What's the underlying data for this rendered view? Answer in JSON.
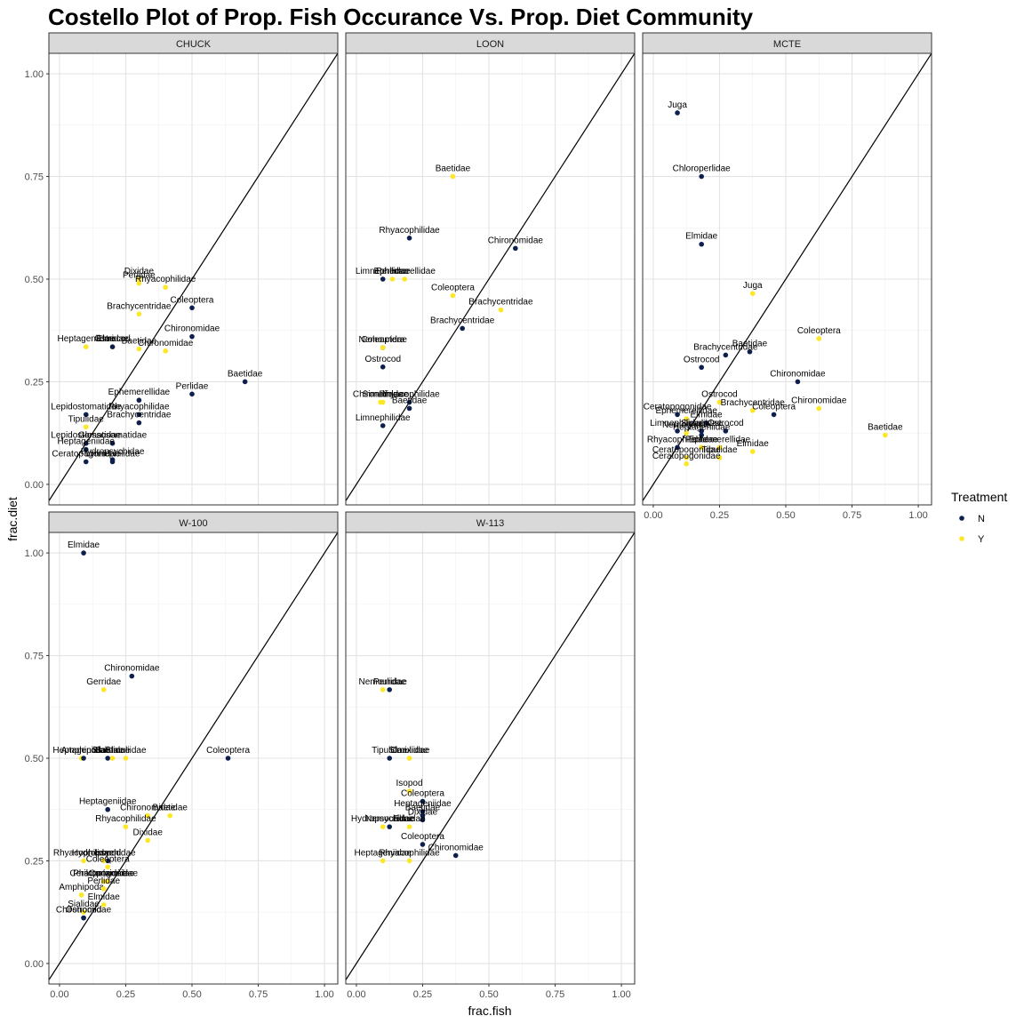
{
  "chart_data": {
    "type": "scatter",
    "title": "Costello Plot of Prop. Fish Occurance Vs. Prop. Diet Community",
    "xlabel": "frac.fish",
    "ylabel": "frac.diet",
    "xlim": [
      -0.04,
      1.05
    ],
    "ylim": [
      -0.05,
      1.05
    ],
    "x_ticks": [
      "0.00",
      "0.25",
      "0.50",
      "0.75",
      "1.00"
    ],
    "y_ticks": [
      "0.00",
      "0.25",
      "0.50",
      "0.75",
      "1.00"
    ],
    "reference_line": "y = x",
    "grid": true,
    "legend": {
      "title": "Treatment",
      "position": "right",
      "entries": [
        {
          "name": "N",
          "color": "#0d1f4d"
        },
        {
          "name": "Y",
          "color": "#fde725"
        }
      ]
    },
    "panels": [
      {
        "name": "CHUCK",
        "points": [
          {
            "label": "Dixidae",
            "x": 0.3,
            "y": 0.5,
            "t": "Y"
          },
          {
            "label": "Perlidae",
            "x": 0.3,
            "y": 0.49,
            "t": "Y"
          },
          {
            "label": "Rhyacophilidae",
            "x": 0.4,
            "y": 0.48,
            "t": "Y"
          },
          {
            "label": "Coleoptera",
            "x": 0.5,
            "y": 0.43,
            "t": "N"
          },
          {
            "label": "Brachycentridae",
            "x": 0.3,
            "y": 0.415,
            "t": "Y"
          },
          {
            "label": "Chironomidae",
            "x": 0.5,
            "y": 0.36,
            "t": "N"
          },
          {
            "label": "Heptageniidae",
            "x": 0.1,
            "y": 0.335,
            "t": "Y"
          },
          {
            "label": "Elmidae",
            "x": 0.2,
            "y": 0.335,
            "t": "Y"
          },
          {
            "label": "Ostrocod",
            "x": 0.2,
            "y": 0.335,
            "t": "N"
          },
          {
            "label": "Baetidae",
            "x": 0.3,
            "y": 0.33,
            "t": "Y"
          },
          {
            "label": "Chironomidae",
            "x": 0.4,
            "y": 0.325,
            "t": "Y"
          },
          {
            "label": "Baetidae",
            "x": 0.7,
            "y": 0.25,
            "t": "N"
          },
          {
            "label": "Perlidae",
            "x": 0.5,
            "y": 0.22,
            "t": "N"
          },
          {
            "label": "Ephemerellidae",
            "x": 0.3,
            "y": 0.205,
            "t": "N"
          },
          {
            "label": "Rhyacophilidae",
            "x": 0.3,
            "y": 0.17,
            "t": "N"
          },
          {
            "label": "Lepidostomatidae",
            "x": 0.1,
            "y": 0.17,
            "t": "N"
          },
          {
            "label": "Brachycentridae",
            "x": 0.3,
            "y": 0.15,
            "t": "N"
          },
          {
            "label": "Tipulidae",
            "x": 0.1,
            "y": 0.14,
            "t": "Y"
          },
          {
            "label": "Lepidostomatidae",
            "x": 0.1,
            "y": 0.1,
            "t": "N"
          },
          {
            "label": "Glossosomatidae",
            "x": 0.2,
            "y": 0.1,
            "t": "N"
          },
          {
            "label": "Heptageniidae",
            "x": 0.1,
            "y": 0.085,
            "t": "N"
          },
          {
            "label": "Ceratopogonidae",
            "x": 0.1,
            "y": 0.055,
            "t": "N"
          },
          {
            "label": "Limnephilidae",
            "x": 0.2,
            "y": 0.055,
            "t": "N"
          },
          {
            "label": "Hydropsychidae",
            "x": 0.2,
            "y": 0.06,
            "t": "N"
          }
        ]
      },
      {
        "name": "LOON",
        "points": [
          {
            "label": "Baetidae",
            "x": 0.364,
            "y": 0.75,
            "t": "Y"
          },
          {
            "label": "Rhyacophilidae",
            "x": 0.2,
            "y": 0.6,
            "t": "N"
          },
          {
            "label": "Chironomidae",
            "x": 0.6,
            "y": 0.575,
            "t": "N"
          },
          {
            "label": "Limnephilidae",
            "x": 0.1,
            "y": 0.5,
            "t": "N"
          },
          {
            "label": "Perlidae",
            "x": 0.136,
            "y": 0.5,
            "t": "Y"
          },
          {
            "label": "Ephemerellidae",
            "x": 0.182,
            "y": 0.5,
            "t": "Y"
          },
          {
            "label": "Coleoptera",
            "x": 0.364,
            "y": 0.46,
            "t": "Y"
          },
          {
            "label": "Brachycentridae",
            "x": 0.545,
            "y": 0.425,
            "t": "Y"
          },
          {
            "label": "Brachycentridae",
            "x": 0.4,
            "y": 0.38,
            "t": "N"
          },
          {
            "label": "Nemouridae",
            "x": 0.1,
            "y": 0.333,
            "t": "N"
          },
          {
            "label": "Coleoptera",
            "x": 0.1,
            "y": 0.333,
            "t": "Y"
          },
          {
            "label": "Ostrocod",
            "x": 0.1,
            "y": 0.286,
            "t": "N"
          },
          {
            "label": "Chironomidae",
            "x": 0.091,
            "y": 0.2,
            "t": "Y"
          },
          {
            "label": "Simuliidae",
            "x": 0.1,
            "y": 0.2,
            "t": "Y"
          },
          {
            "label": "Rhyacophilidae",
            "x": 0.2,
            "y": 0.2,
            "t": "N"
          },
          {
            "label": "Baetidae",
            "x": 0.2,
            "y": 0.185,
            "t": "N"
          },
          {
            "label": "Limnephilidae",
            "x": 0.1,
            "y": 0.143,
            "t": "N"
          }
        ]
      },
      {
        "name": "MCTE",
        "points": [
          {
            "label": "Juga",
            "x": 0.091,
            "y": 0.905,
            "t": "N"
          },
          {
            "label": "Chloroperlidae",
            "x": 0.182,
            "y": 0.75,
            "t": "N"
          },
          {
            "label": "Elmidae",
            "x": 0.182,
            "y": 0.585,
            "t": "N"
          },
          {
            "label": "Juga",
            "x": 0.375,
            "y": 0.465,
            "t": "Y"
          },
          {
            "label": "Coleoptera",
            "x": 0.625,
            "y": 0.355,
            "t": "Y"
          },
          {
            "label": "Baetidae",
            "x": 0.364,
            "y": 0.323,
            "t": "N"
          },
          {
            "label": "Brachycentridae",
            "x": 0.273,
            "y": 0.315,
            "t": "N"
          },
          {
            "label": "Ostrocod",
            "x": 0.182,
            "y": 0.285,
            "t": "N"
          },
          {
            "label": "Chironomidae",
            "x": 0.545,
            "y": 0.25,
            "t": "N"
          },
          {
            "label": "Ostrocod",
            "x": 0.25,
            "y": 0.2,
            "t": "Y"
          },
          {
            "label": "Chironomidae",
            "x": 0.625,
            "y": 0.185,
            "t": "Y"
          },
          {
            "label": "Brachycentridae",
            "x": 0.375,
            "y": 0.18,
            "t": "Y"
          },
          {
            "label": "Coleoptera",
            "x": 0.455,
            "y": 0.17,
            "t": "N"
          },
          {
            "label": "Ceratopogonidae",
            "x": 0.091,
            "y": 0.17,
            "t": "N"
          },
          {
            "label": "Ephemerellidae",
            "x": 0.125,
            "y": 0.16,
            "t": "Y"
          },
          {
            "label": "Elmidae",
            "x": 0.2,
            "y": 0.15,
            "t": "N"
          },
          {
            "label": "Baetidae",
            "x": 0.875,
            "y": 0.12,
            "t": "Y"
          },
          {
            "label": "Limnephilidae",
            "x": 0.091,
            "y": 0.13,
            "t": "N"
          },
          {
            "label": "Simuliidae",
            "x": 0.182,
            "y": 0.13,
            "t": "N"
          },
          {
            "label": "Ostrocod",
            "x": 0.273,
            "y": 0.13,
            "t": "N"
          },
          {
            "label": "Nemouridae",
            "x": 0.125,
            "y": 0.125,
            "t": "Y"
          },
          {
            "label": "Heptageniidae",
            "x": 0.182,
            "y": 0.12,
            "t": "N"
          },
          {
            "label": "Rhyacophilidae",
            "x": 0.091,
            "y": 0.09,
            "t": "N"
          },
          {
            "label": "Perlidae",
            "x": 0.182,
            "y": 0.09,
            "t": "Y"
          },
          {
            "label": "Ephemerellidae",
            "x": 0.25,
            "y": 0.09,
            "t": "Y"
          },
          {
            "label": "Elmidae",
            "x": 0.375,
            "y": 0.08,
            "t": "Y"
          },
          {
            "label": "Ceratopogonidae",
            "x": 0.125,
            "y": 0.065,
            "t": "Y"
          },
          {
            "label": "Tipulidae",
            "x": 0.25,
            "y": 0.065,
            "t": "Y"
          },
          {
            "label": "Ceratopogonidae",
            "x": 0.125,
            "y": 0.05,
            "t": "Y"
          }
        ]
      },
      {
        "name": "W-100",
        "points": [
          {
            "label": "Elmidae",
            "x": 0.091,
            "y": 1.0,
            "t": "N"
          },
          {
            "label": "Chironomidae",
            "x": 0.273,
            "y": 0.7,
            "t": "N"
          },
          {
            "label": "Gerridae",
            "x": 0.167,
            "y": 0.667,
            "t": "Y"
          },
          {
            "label": "Coleoptera",
            "x": 0.636,
            "y": 0.5,
            "t": "N"
          },
          {
            "label": "Heptageniidae",
            "x": 0.083,
            "y": 0.5,
            "t": "Y"
          },
          {
            "label": "Amphipoda",
            "x": 0.091,
            "y": 0.5,
            "t": "N"
          },
          {
            "label": "Sialidae",
            "x": 0.182,
            "y": 0.5,
            "t": "N"
          },
          {
            "label": "Baetidae",
            "x": 0.2,
            "y": 0.5,
            "t": "Y"
          },
          {
            "label": "Simuliidae",
            "x": 0.25,
            "y": 0.5,
            "t": "Y"
          },
          {
            "label": "Heptageniidae",
            "x": 0.182,
            "y": 0.375,
            "t": "N"
          },
          {
            "label": "Chironomidae",
            "x": 0.333,
            "y": 0.36,
            "t": "Y"
          },
          {
            "label": "Baetidae",
            "x": 0.417,
            "y": 0.36,
            "t": "Y"
          },
          {
            "label": "Rhyacophilidae",
            "x": 0.25,
            "y": 0.333,
            "t": "Y"
          },
          {
            "label": "Dixidae",
            "x": 0.333,
            "y": 0.3,
            "t": "Y"
          },
          {
            "label": "Rhyacophilidae",
            "x": 0.091,
            "y": 0.25,
            "t": "Y"
          },
          {
            "label": "Isopod",
            "x": 0.182,
            "y": 0.25,
            "t": "N"
          },
          {
            "label": "Hydropsychidae",
            "x": 0.167,
            "y": 0.25,
            "t": "Y"
          },
          {
            "label": "Coleoptera",
            "x": 0.182,
            "y": 0.235,
            "t": "Y"
          },
          {
            "label": "Philopotamidae",
            "x": 0.167,
            "y": 0.2,
            "t": "Y"
          },
          {
            "label": "Ceratopogonidae",
            "x": 0.167,
            "y": 0.2,
            "t": "Y"
          },
          {
            "label": "Corixidae",
            "x": 0.182,
            "y": 0.2,
            "t": "Y"
          },
          {
            "label": "Amphipoda",
            "x": 0.083,
            "y": 0.167,
            "t": "Y"
          },
          {
            "label": "Perlidae",
            "x": 0.167,
            "y": 0.182,
            "t": "Y"
          },
          {
            "label": "Elmidae",
            "x": 0.167,
            "y": 0.143,
            "t": "Y"
          },
          {
            "label": "Sialidae",
            "x": 0.091,
            "y": 0.125,
            "t": "Y"
          },
          {
            "label": "Chironomidae",
            "x": 0.091,
            "y": 0.111,
            "t": "N"
          },
          {
            "label": "Ostrocod",
            "x": 0.091,
            "y": 0.111,
            "t": "N"
          }
        ]
      },
      {
        "name": "W-113",
        "points": [
          {
            "label": "Nemouridae",
            "x": 0.1,
            "y": 0.667,
            "t": "Y"
          },
          {
            "label": "Perlidae",
            "x": 0.125,
            "y": 0.667,
            "t": "N"
          },
          {
            "label": "Tipulidae",
            "x": 0.125,
            "y": 0.5,
            "t": "N"
          },
          {
            "label": "Corixidae",
            "x": 0.2,
            "y": 0.5,
            "t": "Y"
          },
          {
            "label": "Simuliidae",
            "x": 0.2,
            "y": 0.5,
            "t": "Y"
          },
          {
            "label": "Isopod",
            "x": 0.2,
            "y": 0.42,
            "t": "Y"
          },
          {
            "label": "Coleoptera",
            "x": 0.25,
            "y": 0.395,
            "t": "N"
          },
          {
            "label": "Heptageniidae",
            "x": 0.25,
            "y": 0.37,
            "t": "N"
          },
          {
            "label": "Baetidae",
            "x": 0.25,
            "y": 0.36,
            "t": "N"
          },
          {
            "label": "Dixidae",
            "x": 0.25,
            "y": 0.35,
            "t": "N"
          },
          {
            "label": "Hydropsychidae",
            "x": 0.1,
            "y": 0.333,
            "t": "Y"
          },
          {
            "label": "Nemouridae",
            "x": 0.125,
            "y": 0.333,
            "t": "N"
          },
          {
            "label": "Elmidae",
            "x": 0.2,
            "y": 0.333,
            "t": "Y"
          },
          {
            "label": "Coleoptera",
            "x": 0.25,
            "y": 0.29,
            "t": "N"
          },
          {
            "label": "Chironomidae",
            "x": 0.375,
            "y": 0.263,
            "t": "N"
          },
          {
            "label": "Heptageniidae",
            "x": 0.1,
            "y": 0.25,
            "t": "Y"
          },
          {
            "label": "Rhyacophilidae",
            "x": 0.2,
            "y": 0.25,
            "t": "Y"
          }
        ]
      }
    ]
  }
}
